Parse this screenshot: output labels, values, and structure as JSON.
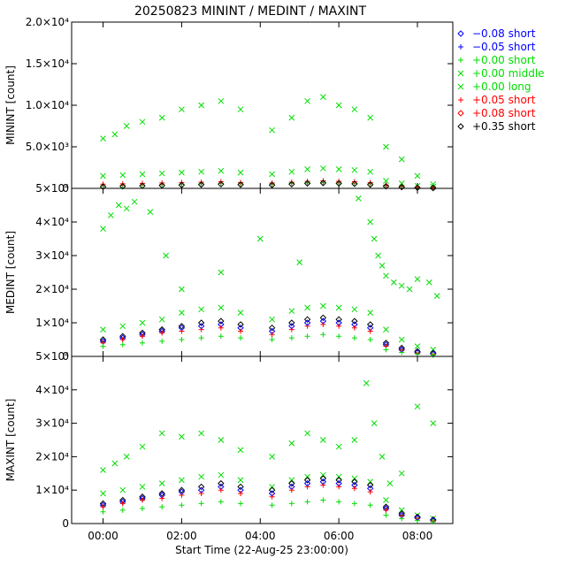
{
  "chart_data": {
    "type": "scatter",
    "title": "20250823 MININT / MEDINT / MAXINT",
    "xlabel": "Start Time (22-Aug-25 23:00:00)",
    "x_range_hours": [
      -0.8,
      8.9
    ],
    "x_ticks": [
      {
        "value": 0,
        "label": "00:00"
      },
      {
        "value": 2,
        "label": "02:00"
      },
      {
        "value": 4,
        "label": "04:00"
      },
      {
        "value": 6,
        "label": "06:00"
      },
      {
        "value": 8,
        "label": "08:00"
      }
    ],
    "legend": [
      {
        "symbol": "diamond",
        "label": "−0.08 short",
        "color": "#0000ff"
      },
      {
        "symbol": "plus",
        "label": "−0.05 short",
        "color": "#0000ff"
      },
      {
        "symbol": "plus",
        "label": "+0.00 short",
        "color": "#00dd00"
      },
      {
        "symbol": "cross",
        "label": "+0.00 middle",
        "color": "#00dd00"
      },
      {
        "symbol": "cross",
        "label": "+0.00 long",
        "color": "#00dd00"
      },
      {
        "symbol": "plus",
        "label": "+0.05 short",
        "color": "#ff0000"
      },
      {
        "symbol": "diamond",
        "label": "+0.08 short",
        "color": "#ff0000"
      },
      {
        "symbol": "diamond",
        "label": "+0.35 short",
        "color": "#000000"
      }
    ],
    "panels": [
      {
        "ylabel": "MININT [count]",
        "ylim": [
          0,
          20000
        ],
        "yticks": [
          {
            "value": 0,
            "label": "0"
          },
          {
            "value": 5000,
            "label": "5.0×10³"
          },
          {
            "value": 10000,
            "label": "1.0×10⁴"
          },
          {
            "value": 15000,
            "label": "1.5×10⁴"
          },
          {
            "value": 20000,
            "label": "2.0×10⁴"
          }
        ],
        "series": [
          {
            "legend_index": 3,
            "x": [
              0.0,
              0.3,
              0.6,
              1.0,
              1.5,
              2.0,
              2.5,
              3.0,
              3.5,
              4.3,
              4.8,
              5.2,
              5.6,
              6.0,
              6.4,
              6.8,
              7.2,
              7.6,
              8.0,
              8.4
            ],
            "y": [
              6000,
              6500,
              7500,
              8000,
              8500,
              9500,
              10000,
              10500,
              9500,
              7000,
              8500,
              10500,
              11000,
              10000,
              9500,
              8500,
              5000,
              3500,
              1500,
              500
            ]
          },
          {
            "legend_index": 4,
            "x": [
              0.0,
              0.5,
              1.0,
              1.5,
              2.0,
              2.5,
              3.0,
              3.5,
              4.3,
              4.8,
              5.2,
              5.6,
              6.0,
              6.4,
              6.8,
              7.2,
              7.6,
              8.0,
              8.4
            ],
            "y": [
              1500,
              1600,
              1700,
              1800,
              1900,
              2000,
              2100,
              1900,
              1700,
              2000,
              2300,
              2400,
              2300,
              2200,
              2000,
              900,
              600,
              300,
              200
            ]
          },
          {
            "legend_index": 2,
            "x": [
              0.0,
              0.5,
              1.0,
              1.5,
              2.0,
              2.5,
              3.0,
              3.5,
              4.3,
              4.8,
              5.2,
              5.6,
              6.0,
              6.4,
              6.8,
              7.2,
              7.6,
              8.0,
              8.4
            ],
            "y": [
              300,
              350,
              400,
              450,
              500,
              550,
              600,
              550,
              500,
              600,
              650,
              700,
              650,
              600,
              550,
              300,
              200,
              100,
              50
            ]
          },
          {
            "legend_index": 5,
            "x": [
              0.0,
              0.5,
              1.0,
              1.5,
              2.0,
              2.5,
              3.0,
              3.5,
              4.3,
              4.8,
              5.2,
              5.6,
              6.0,
              6.4,
              6.8,
              7.2,
              7.6,
              8.0,
              8.4
            ],
            "y": [
              500,
              550,
              600,
              650,
              700,
              750,
              800,
              700,
              650,
              750,
              850,
              900,
              850,
              800,
              700,
              400,
              250,
              150,
              80
            ]
          },
          {
            "legend_index": 7,
            "x": [
              0.0,
              0.5,
              1.0,
              1.5,
              2.0,
              2.5,
              3.0,
              3.5,
              4.3,
              4.8,
              5.2,
              5.6,
              6.0,
              6.4,
              6.8,
              7.2,
              7.6,
              8.0,
              8.4
            ],
            "y": [
              200,
              250,
              300,
              350,
              400,
              450,
              500,
              450,
              400,
              500,
              600,
              650,
              600,
              550,
              450,
              250,
              150,
              80,
              40
            ]
          }
        ]
      },
      {
        "ylabel": "MEDINT [count]",
        "ylim": [
          0,
          50000
        ],
        "yticks": [
          {
            "value": 0,
            "label": "0"
          },
          {
            "value": 10000,
            "label": "1×10⁴"
          },
          {
            "value": 20000,
            "label": "2×10⁴"
          },
          {
            "value": 30000,
            "label": "3×10⁴"
          },
          {
            "value": 40000,
            "label": "4×10⁴"
          },
          {
            "value": 50000,
            "label": "5×10⁴"
          }
        ],
        "series": [
          {
            "legend_index": 4,
            "x": [
              0.0,
              0.2,
              0.4,
              0.6,
              0.8,
              1.2,
              1.6,
              2.0,
              3.0,
              4.0,
              5.0,
              6.5,
              6.8,
              6.9,
              7.0,
              7.1,
              7.2,
              7.4,
              7.6,
              7.8,
              8.0,
              8.3,
              8.5
            ],
            "y": [
              38000,
              42000,
              45000,
              44000,
              46000,
              43000,
              30000,
              20000,
              25000,
              35000,
              28000,
              47000,
              40000,
              35000,
              30000,
              27000,
              24000,
              22000,
              21000,
              20000,
              23000,
              22000,
              18000
            ]
          },
          {
            "legend_index": 3,
            "x": [
              0.0,
              0.5,
              1.0,
              1.5,
              2.0,
              2.5,
              3.0,
              3.5,
              4.3,
              4.8,
              5.2,
              5.6,
              6.0,
              6.4,
              6.8,
              7.2,
              7.6,
              8.0,
              8.4
            ],
            "y": [
              8000,
              9000,
              10000,
              11000,
              13000,
              14000,
              14500,
              13000,
              11000,
              13500,
              14500,
              15000,
              14500,
              14000,
              13000,
              8000,
              5000,
              3000,
              2000
            ]
          },
          {
            "legend_index": 7,
            "x": [
              0.0,
              0.5,
              1.0,
              1.5,
              2.0,
              2.5,
              3.0,
              3.5,
              4.3,
              4.8,
              5.2,
              5.6,
              6.0,
              6.4,
              6.8,
              7.2,
              7.6,
              8.0,
              8.4
            ],
            "y": [
              5000,
              6000,
              7000,
              8000,
              9000,
              10000,
              10500,
              9500,
              8500,
              10000,
              11000,
              11500,
              11000,
              10500,
              9500,
              4000,
              2500,
              1500,
              1000
            ]
          },
          {
            "legend_index": 0,
            "x": [
              0.0,
              0.5,
              1.0,
              1.5,
              2.0,
              2.5,
              3.0,
              3.5,
              4.3,
              4.8,
              5.2,
              5.6,
              6.0,
              6.4,
              6.8,
              7.2,
              7.6,
              8.0,
              8.4
            ],
            "y": [
              4500,
              5500,
              6500,
              7500,
              8500,
              9000,
              9500,
              8500,
              7500,
              9000,
              10000,
              10500,
              10000,
              9500,
              8500,
              3500,
              2000,
              1200,
              800
            ]
          },
          {
            "legend_index": 5,
            "x": [
              0.0,
              0.5,
              1.0,
              1.5,
              2.0,
              2.5,
              3.0,
              3.5,
              4.3,
              4.8,
              5.2,
              5.6,
              6.0,
              6.4,
              6.8,
              7.2,
              7.6,
              8.0,
              8.4
            ],
            "y": [
              4000,
              5000,
              6000,
              7000,
              7500,
              8000,
              8500,
              7500,
              6500,
              8000,
              9000,
              9500,
              9000,
              8500,
              7500,
              3000,
              1800,
              1000,
              600
            ]
          },
          {
            "legend_index": 2,
            "x": [
              0.0,
              0.5,
              1.0,
              1.5,
              2.0,
              2.5,
              3.0,
              3.5,
              4.3,
              4.8,
              5.2,
              5.6,
              6.0,
              6.4,
              6.8,
              7.2,
              7.6,
              8.0,
              8.4
            ],
            "y": [
              3000,
              3500,
              4000,
              4500,
              5000,
              5500,
              6000,
              5500,
              5000,
              5500,
              6000,
              6500,
              6000,
              5500,
              5000,
              2000,
              1200,
              700,
              400
            ]
          }
        ]
      },
      {
        "ylabel": "MAXINT [count]",
        "ylim": [
          0,
          50000
        ],
        "yticks": [
          {
            "value": 0,
            "label": "0"
          },
          {
            "value": 10000,
            "label": "1×10⁴"
          },
          {
            "value": 20000,
            "label": "2×10⁴"
          },
          {
            "value": 30000,
            "label": "3×10⁴"
          },
          {
            "value": 40000,
            "label": "4×10⁴"
          },
          {
            "value": 50000,
            "label": "5×10⁴"
          }
        ],
        "series": [
          {
            "legend_index": 4,
            "x": [
              0.0,
              0.3,
              0.6,
              1.0,
              1.5,
              2.0,
              2.5,
              3.0,
              3.5,
              4.3,
              4.8,
              5.2,
              5.6,
              6.0,
              6.4,
              6.7,
              6.9,
              7.1,
              7.3,
              7.6,
              8.0,
              8.4
            ],
            "y": [
              16000,
              18000,
              20000,
              23000,
              27000,
              26000,
              27000,
              25000,
              22000,
              20000,
              24000,
              27000,
              25000,
              23000,
              25000,
              42000,
              30000,
              20000,
              12000,
              15000,
              35000,
              30000
            ]
          },
          {
            "legend_index": 3,
            "x": [
              0.0,
              0.5,
              1.0,
              1.5,
              2.0,
              2.5,
              3.0,
              3.5,
              4.3,
              4.8,
              5.2,
              5.6,
              6.0,
              6.4,
              6.8,
              7.2,
              7.6,
              8.0,
              8.4
            ],
            "y": [
              9000,
              10000,
              11000,
              12000,
              13000,
              14000,
              14500,
              13000,
              11000,
              13000,
              14000,
              14500,
              14000,
              13500,
              12500,
              7000,
              4000,
              2500,
              1500
            ]
          },
          {
            "legend_index": 7,
            "x": [
              0.0,
              0.5,
              1.0,
              1.5,
              2.0,
              2.5,
              3.0,
              3.5,
              4.3,
              4.8,
              5.2,
              5.6,
              6.0,
              6.4,
              6.8,
              7.2,
              7.6,
              8.0,
              8.4
            ],
            "y": [
              6000,
              7000,
              8000,
              9000,
              10000,
              11000,
              12000,
              11000,
              10000,
              12000,
              13000,
              13500,
              13000,
              12500,
              11500,
              5000,
              3000,
              2000,
              1200
            ]
          },
          {
            "legend_index": 0,
            "x": [
              0.0,
              0.5,
              1.0,
              1.5,
              2.0,
              2.5,
              3.0,
              3.5,
              4.3,
              4.8,
              5.2,
              5.6,
              6.0,
              6.4,
              6.8,
              7.2,
              7.6,
              8.0,
              8.4
            ],
            "y": [
              5500,
              6500,
              7500,
              8500,
              9500,
              10000,
              11000,
              10000,
              9000,
              11000,
              12000,
              12500,
              12000,
              11500,
              10500,
              4500,
              2500,
              1700,
              1000
            ]
          },
          {
            "legend_index": 5,
            "x": [
              0.0,
              0.5,
              1.0,
              1.5,
              2.0,
              2.5,
              3.0,
              3.5,
              4.3,
              4.8,
              5.2,
              5.6,
              6.0,
              6.4,
              6.8,
              7.2,
              7.6,
              8.0,
              8.4
            ],
            "y": [
              5000,
              6000,
              7000,
              7500,
              8500,
              9000,
              10000,
              9000,
              8000,
              10000,
              11000,
              11500,
              11000,
              10500,
              9500,
              4000,
              2200,
              1500,
              800
            ]
          },
          {
            "legend_index": 2,
            "x": [
              0.0,
              0.5,
              1.0,
              1.5,
              2.0,
              2.5,
              3.0,
              3.5,
              4.3,
              4.8,
              5.2,
              5.6,
              6.0,
              6.4,
              6.8,
              7.2,
              7.6,
              8.0,
              8.4
            ],
            "y": [
              3500,
              4000,
              4500,
              5000,
              5500,
              6000,
              6500,
              6000,
              5500,
              6000,
              6500,
              7000,
              6500,
              6000,
              5500,
              2500,
              1500,
              900,
              500
            ]
          }
        ]
      }
    ]
  }
}
